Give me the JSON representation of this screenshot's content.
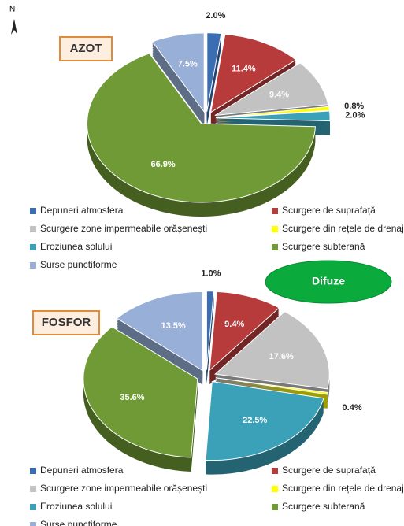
{
  "map_label": "N",
  "chart_data": [
    {
      "type": "pie",
      "title": "AZOT",
      "categories": [
        "Depuneri atmosfera",
        "Scurgere de suprafață",
        "Scurgere zone impermeabile orășenești",
        "Scurgere din rețele de drenaje",
        "Eroziunea solului",
        "Scurgere subterană",
        "Surse punctiforme"
      ],
      "values": [
        2.0,
        11.4,
        9.4,
        0.8,
        2.0,
        66.9,
        7.5
      ],
      "value_labels": [
        "2.0%",
        "11.4%",
        "9.4%",
        "0.8%",
        "2.0%",
        "66.9%",
        "7.5%"
      ],
      "colors": [
        "#3b6db3",
        "#b83b3b",
        "#c2c2c2",
        "#ffff00",
        "#3aa1b8",
        "#6f9a36",
        "#98afd8"
      ],
      "legend": "bottom"
    },
    {
      "type": "pie",
      "title": "FOSFOR",
      "categories": [
        "Depuneri atmosfera",
        "Scurgere de suprafață",
        "Scurgere zone impermeabile orășenești",
        "Scurgere din rețele de drenaje",
        "Eroziunea solului",
        "Scurgere subterană",
        "Surse punctiforme"
      ],
      "values": [
        1.0,
        9.4,
        17.6,
        0.4,
        22.5,
        35.6,
        13.5
      ],
      "value_labels": [
        "1.0%",
        "9.4%",
        "17.6%",
        "0.4%",
        "22.5%",
        "35.6%",
        "13.5%"
      ],
      "colors": [
        "#3b6db3",
        "#b83b3b",
        "#c2c2c2",
        "#ffff00",
        "#3aa1b8",
        "#6f9a36",
        "#98afd8"
      ],
      "legend": "bottom",
      "annotations": [
        "Difuze"
      ]
    }
  ]
}
